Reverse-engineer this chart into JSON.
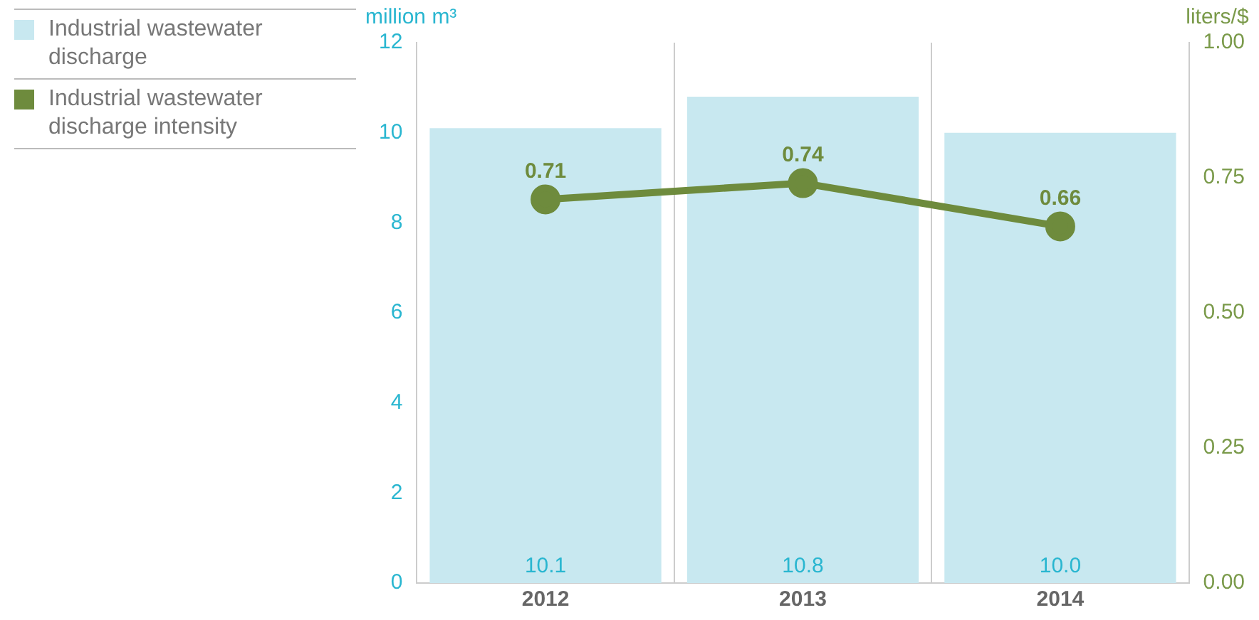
{
  "chart_data": {
    "type": "bar",
    "categories": [
      "2012",
      "2013",
      "2014"
    ],
    "series": [
      {
        "name": "Industrial wastewater discharge",
        "color": "#c8e8f0",
        "values": [
          10.1,
          10.8,
          10.0
        ],
        "value_labels": [
          "10.1",
          "10.8",
          "10.0"
        ]
      },
      {
        "name": "Industrial wastewater discharge intensity",
        "type": "line",
        "axis": "y2",
        "color": "#6e8b3d",
        "values": [
          0.71,
          0.74,
          0.66
        ]
      }
    ],
    "ylabel": "million m³",
    "y2label": "liters/$",
    "ylim": [
      0,
      12
    ],
    "yticks": [
      0,
      2,
      4,
      6,
      8,
      10,
      12
    ],
    "y2lim": [
      0,
      1
    ],
    "y2ticks": [
      {
        "value": 0,
        "label": "0.00"
      },
      0.25,
      {
        "value": 0.5,
        "label": "0.50"
      },
      0.75,
      {
        "value": 1,
        "label": "1.00"
      }
    ],
    "grid": "x",
    "legend": "left",
    "marker": "circle",
    "line_style": "solid",
    "data_labels": true
  }
}
